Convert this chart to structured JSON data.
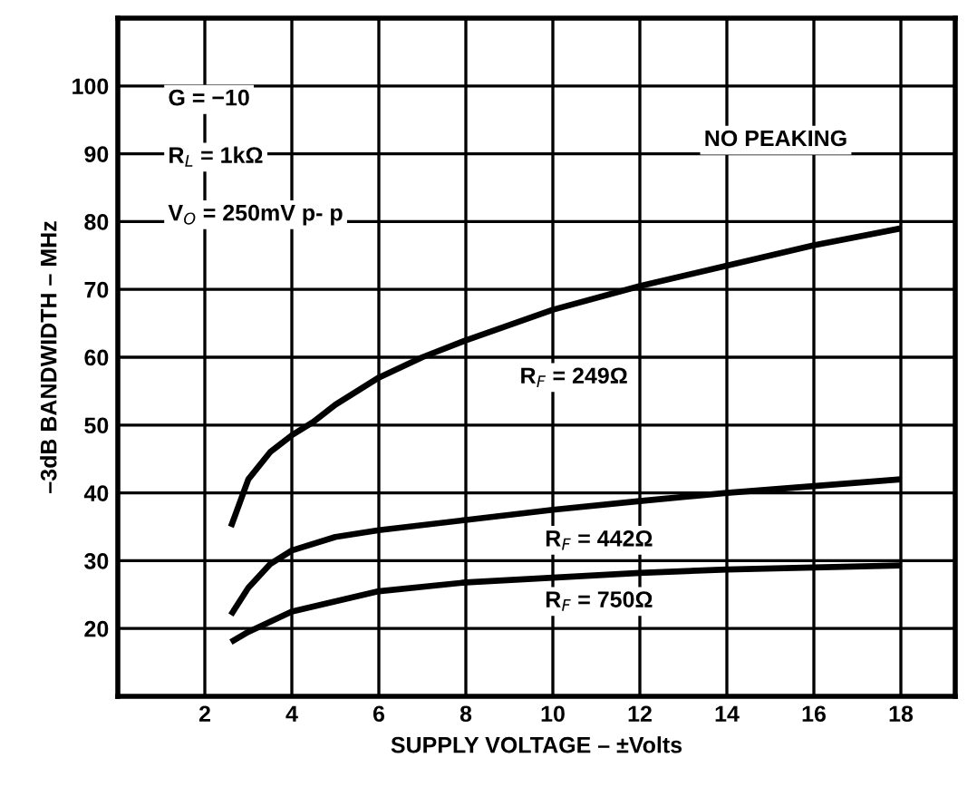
{
  "chart_data": {
    "type": "line",
    "xlabel": "SUPPLY VOLTAGE – ±Volts",
    "ylabel": "–3dB BANDWIDTH – MHz",
    "xlim": [
      0,
      19.25
    ],
    "ylim": [
      10,
      110
    ],
    "xticks": [
      2,
      4,
      6,
      8,
      10,
      12,
      14,
      16,
      18
    ],
    "yticks": [
      20,
      30,
      40,
      50,
      60,
      70,
      80,
      90,
      100
    ],
    "grid": true,
    "marker": "none",
    "line_style": "solid",
    "series": [
      {
        "color": "#000000",
        "x": [
          2.6,
          3,
          3.5,
          4,
          4.5,
          5,
          6,
          7,
          8,
          10,
          12,
          14,
          16,
          18
        ],
        "values": [
          35,
          42,
          46,
          48.5,
          50.5,
          53,
          57,
          60,
          62.5,
          67,
          70.5,
          73.5,
          76.5,
          79
        ]
      },
      {
        "color": "#000000",
        "x": [
          2.6,
          3,
          3.5,
          4,
          5,
          6,
          8,
          10,
          12,
          14,
          16,
          18
        ],
        "values": [
          22,
          26,
          29.5,
          31.5,
          33.5,
          34.5,
          36,
          37.5,
          38.8,
          40,
          41,
          42
        ]
      },
      {
        "color": "#000000",
        "x": [
          2.6,
          3,
          3.5,
          4,
          5,
          6,
          8,
          10,
          12,
          14,
          16,
          18
        ],
        "values": [
          18,
          19.5,
          21,
          22.5,
          24,
          25.5,
          26.8,
          27.5,
          28.2,
          28.7,
          29,
          29.3
        ]
      }
    ],
    "annotations": [
      "G = −10",
      "R$_{L}$ = 1kΩ",
      "V$_{O}$ = 250mV p- p",
      "NO PEAKING",
      "R$_{F}$ = 249Ω",
      "R$_{F}$ = 442Ω",
      "R$_{F}$ = 750Ω"
    ]
  }
}
